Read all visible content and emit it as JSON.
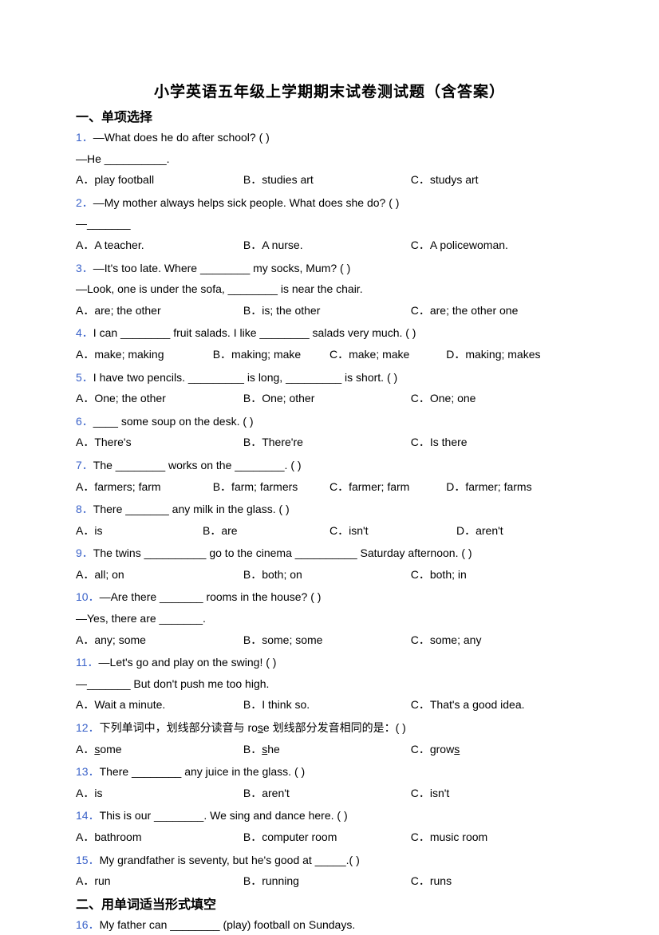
{
  "title": "小学英语五年级上学期期末试卷测试题（含答案）",
  "section1": "一、单项选择",
  "section2": "二、用单词适当形式填空",
  "q1": {
    "num": "1．",
    "text": "—What does he do after school? (    )",
    "line2": "—He __________.",
    "a": "A．play football",
    "b": "B．studies art",
    "c": "C．studys art"
  },
  "q2": {
    "num": "2．",
    "text": "—My mother always helps sick people. What does she do? (     )",
    "line2": "—_______",
    "a": "A．A teacher.",
    "b": "B．A nurse.",
    "c": "C．A policewoman."
  },
  "q3": {
    "num": "3．",
    "text": "—It's too late. Where ________ my socks, Mum?  (       )",
    "line2": "—Look, one is under the sofa, ________ is near the chair.",
    "a": "A．are; the other",
    "b": "B．is; the other",
    "c": "C．are; the other one"
  },
  "q4": {
    "num": "4．",
    "text": "I can ________ fruit salads. I like ________ salads very much. (    )",
    "a": "A．make; making",
    "b": "B．making; make",
    "c": "C．make; make",
    "d": "D．making; makes"
  },
  "q5": {
    "num": "5．",
    "text": "I have two pencils. _________ is long, _________ is short. (    )",
    "a": "A．One; the other",
    "b": "B．One; other",
    "c": "C．One; one"
  },
  "q6": {
    "num": "6．",
    "text": "____ some soup on the desk. (    )",
    "a": "A．There's",
    "b": "B．There're",
    "c": "C．Is there"
  },
  "q7": {
    "num": "7．",
    "text": "The ________ works on the ________. (     )",
    "a": "A．farmers; farm",
    "b": "B．farm; farmers",
    "c": "C．farmer; farm",
    "d": "D．farmer; farms"
  },
  "q8": {
    "num": "8．",
    "text": "There _______ any milk in the glass. (   )",
    "a": "A．is",
    "b": "B．are",
    "c": "C．isn't",
    "d": "D．aren't"
  },
  "q9": {
    "num": "9．",
    "text": "The twins __________ go to the cinema __________ Saturday afternoon. (    )",
    "a": "A．all; on",
    "b": "B．both; on",
    "c": "C．both; in"
  },
  "q10": {
    "num": "10．",
    "text": "—Are there _______ rooms in the house? (   )",
    "line2": "—Yes, there are _______.",
    "a": "A．any; some",
    "b": "B．some; some",
    "c": "C．some; any"
  },
  "q11": {
    "num": "11．",
    "text": "—Let's go and play on the swing! (    )",
    "line2": "—_______ But don't push me too high.",
    "a": "A．Wait a minute.",
    "b": "B．I think so.",
    "c": "C．That's a good idea."
  },
  "q12": {
    "num": "12．",
    "text_pre": "下列单词中，划线部分读音与 ro",
    "text_u": "s",
    "text_post": "e 划线部分发音相同的是：(   )",
    "a_pre": "A．",
    "a_u": "s",
    "a_post": "ome",
    "b_pre": "B．",
    "b_u": "s",
    "b_post": "he",
    "c_pre": "C．grow",
    "c_u": "s"
  },
  "q13": {
    "num": "13．",
    "text": "There ________ any juice in the glass. (    )",
    "a": "A．is",
    "b": "B．aren't",
    "c": "C．isn't"
  },
  "q14": {
    "num": "14．",
    "text": "This is our ________. We sing and dance here. (   )",
    "a": "A．bathroom",
    "b": "B．computer room",
    "c": "C．music room"
  },
  "q15": {
    "num": "15．",
    "text": "My grandfather is seventy, but he's good at _____.(    )",
    "a": "A．run",
    "b": "B．running",
    "c": "C．runs"
  },
  "q16": {
    "num": "16．",
    "text": "My father can ________ (play) football on Sundays."
  }
}
